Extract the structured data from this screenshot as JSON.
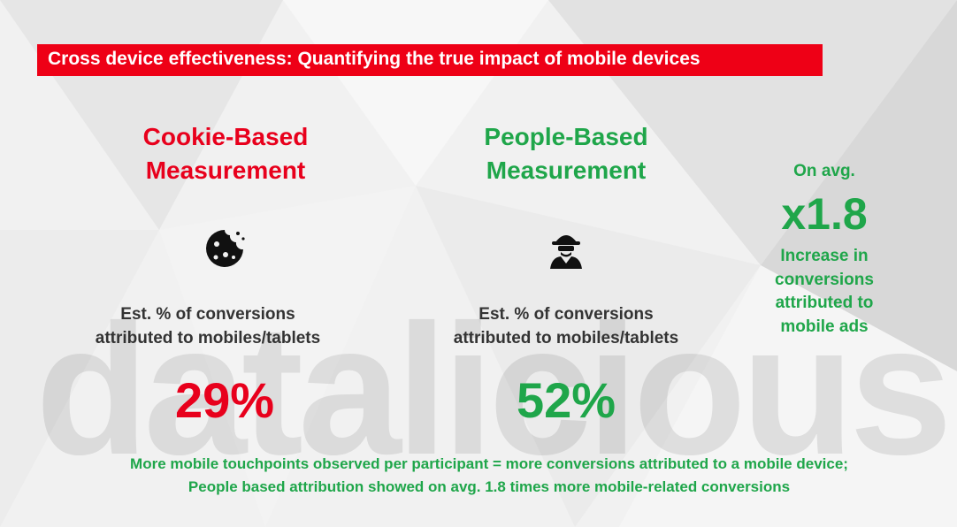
{
  "title": "Cross device effectiveness: Quantifying the true impact of mobile devices",
  "watermark": "datalicious",
  "columns": [
    {
      "heading": [
        "Cookie-Based",
        "Measurement"
      ],
      "caption": [
        "Est. % of conversions",
        "attributed to mobiles/tablets"
      ],
      "value": "29%"
    },
    {
      "heading": [
        "People-Based",
        "Measurement"
      ],
      "caption": [
        "Est. % of conversions",
        "attributed to mobiles/tablets"
      ],
      "value": "52%"
    }
  ],
  "side_stat": {
    "intro": "On avg.",
    "value": "x1.8",
    "caption": [
      "Increase in",
      "conversions",
      "attributed to",
      "mobile ads"
    ]
  },
  "footer": [
    "More mobile touchpoints observed per participant = more conversions attributed to a mobile device;",
    "People based attribution showed on avg. 1.8 times more mobile-related conversions"
  ]
}
